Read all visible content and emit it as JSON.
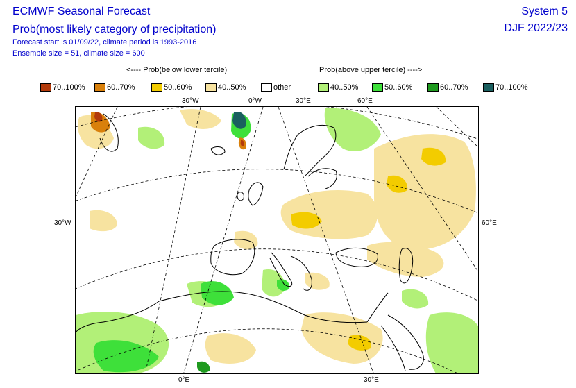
{
  "header": {
    "title_line1": "ECMWF Seasonal Forecast",
    "title_line2": "Prob(most likely category of precipitation)",
    "info_line1": "Forecast start is 01/09/22, climate period is 1993-2016",
    "info_line2": "Ensemble size = 51, climate size = 600",
    "system": "System 5",
    "season": "DJF 2022/23"
  },
  "legend": {
    "below_header": "<---- Prob(below lower tercile)",
    "above_header": "Prob(above upper tercile) ---->",
    "items": [
      {
        "label": "70..100%",
        "color": "#b23a0b"
      },
      {
        "label": "60..70%",
        "color": "#d9800b"
      },
      {
        "label": "50..60%",
        "color": "#f3cc00"
      },
      {
        "label": "40..50%",
        "color": "#f7e3a0"
      },
      {
        "label": "other",
        "color": "#ffffff"
      },
      {
        "label": "40..50%",
        "color": "#b2f078"
      },
      {
        "label": "50..60%",
        "color": "#3ee03a"
      },
      {
        "label": "60..70%",
        "color": "#1f9a1f"
      },
      {
        "label": "70..100%",
        "color": "#1a5f5f"
      }
    ]
  },
  "map": {
    "top_labels": [
      "30°W",
      "0°W",
      "30°E",
      "60°E"
    ],
    "left_label": "30°W",
    "right_label": "60°E",
    "bottom_labels": [
      "0°E",
      "30°E"
    ]
  }
}
